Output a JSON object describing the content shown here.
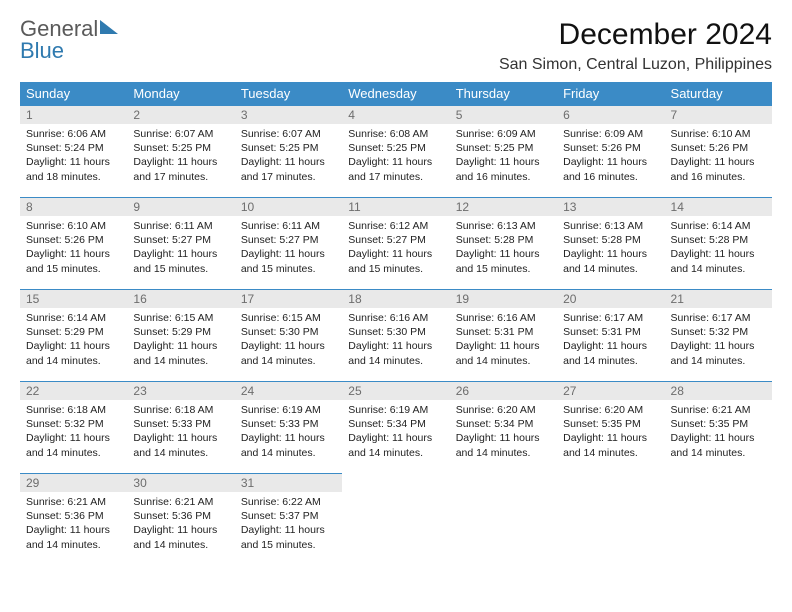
{
  "brand": {
    "word1": "General",
    "word2": "Blue"
  },
  "title": "December 2024",
  "location": "San Simon, Central Luzon, Philippines",
  "columns": [
    "Sunday",
    "Monday",
    "Tuesday",
    "Wednesday",
    "Thursday",
    "Friday",
    "Saturday"
  ],
  "colors": {
    "header_bg": "#3b8bc6",
    "header_text": "#ffffff",
    "daynum_bg": "#e9e9e9",
    "daynum_text": "#6d6d6d",
    "row_border": "#3b8bc6",
    "logo_gray": "#5a5a5a",
    "logo_blue": "#2f7aaf",
    "page_bg": "#ffffff"
  },
  "fonts": {
    "month_title_pt": 30,
    "location_pt": 16,
    "header_cell_pt": 13,
    "daynum_pt": 12,
    "body_pt": 10.5
  },
  "weeks": [
    [
      {
        "num": "1",
        "sunrise": "Sunrise: 6:06 AM",
        "sunset": "Sunset: 5:24 PM",
        "daylight": "Daylight: 11 hours and 18 minutes."
      },
      {
        "num": "2",
        "sunrise": "Sunrise: 6:07 AM",
        "sunset": "Sunset: 5:25 PM",
        "daylight": "Daylight: 11 hours and 17 minutes."
      },
      {
        "num": "3",
        "sunrise": "Sunrise: 6:07 AM",
        "sunset": "Sunset: 5:25 PM",
        "daylight": "Daylight: 11 hours and 17 minutes."
      },
      {
        "num": "4",
        "sunrise": "Sunrise: 6:08 AM",
        "sunset": "Sunset: 5:25 PM",
        "daylight": "Daylight: 11 hours and 17 minutes."
      },
      {
        "num": "5",
        "sunrise": "Sunrise: 6:09 AM",
        "sunset": "Sunset: 5:25 PM",
        "daylight": "Daylight: 11 hours and 16 minutes."
      },
      {
        "num": "6",
        "sunrise": "Sunrise: 6:09 AM",
        "sunset": "Sunset: 5:26 PM",
        "daylight": "Daylight: 11 hours and 16 minutes."
      },
      {
        "num": "7",
        "sunrise": "Sunrise: 6:10 AM",
        "sunset": "Sunset: 5:26 PM",
        "daylight": "Daylight: 11 hours and 16 minutes."
      }
    ],
    [
      {
        "num": "8",
        "sunrise": "Sunrise: 6:10 AM",
        "sunset": "Sunset: 5:26 PM",
        "daylight": "Daylight: 11 hours and 15 minutes."
      },
      {
        "num": "9",
        "sunrise": "Sunrise: 6:11 AM",
        "sunset": "Sunset: 5:27 PM",
        "daylight": "Daylight: 11 hours and 15 minutes."
      },
      {
        "num": "10",
        "sunrise": "Sunrise: 6:11 AM",
        "sunset": "Sunset: 5:27 PM",
        "daylight": "Daylight: 11 hours and 15 minutes."
      },
      {
        "num": "11",
        "sunrise": "Sunrise: 6:12 AM",
        "sunset": "Sunset: 5:27 PM",
        "daylight": "Daylight: 11 hours and 15 minutes."
      },
      {
        "num": "12",
        "sunrise": "Sunrise: 6:13 AM",
        "sunset": "Sunset: 5:28 PM",
        "daylight": "Daylight: 11 hours and 15 minutes."
      },
      {
        "num": "13",
        "sunrise": "Sunrise: 6:13 AM",
        "sunset": "Sunset: 5:28 PM",
        "daylight": "Daylight: 11 hours and 14 minutes."
      },
      {
        "num": "14",
        "sunrise": "Sunrise: 6:14 AM",
        "sunset": "Sunset: 5:28 PM",
        "daylight": "Daylight: 11 hours and 14 minutes."
      }
    ],
    [
      {
        "num": "15",
        "sunrise": "Sunrise: 6:14 AM",
        "sunset": "Sunset: 5:29 PM",
        "daylight": "Daylight: 11 hours and 14 minutes."
      },
      {
        "num": "16",
        "sunrise": "Sunrise: 6:15 AM",
        "sunset": "Sunset: 5:29 PM",
        "daylight": "Daylight: 11 hours and 14 minutes."
      },
      {
        "num": "17",
        "sunrise": "Sunrise: 6:15 AM",
        "sunset": "Sunset: 5:30 PM",
        "daylight": "Daylight: 11 hours and 14 minutes."
      },
      {
        "num": "18",
        "sunrise": "Sunrise: 6:16 AM",
        "sunset": "Sunset: 5:30 PM",
        "daylight": "Daylight: 11 hours and 14 minutes."
      },
      {
        "num": "19",
        "sunrise": "Sunrise: 6:16 AM",
        "sunset": "Sunset: 5:31 PM",
        "daylight": "Daylight: 11 hours and 14 minutes."
      },
      {
        "num": "20",
        "sunrise": "Sunrise: 6:17 AM",
        "sunset": "Sunset: 5:31 PM",
        "daylight": "Daylight: 11 hours and 14 minutes."
      },
      {
        "num": "21",
        "sunrise": "Sunrise: 6:17 AM",
        "sunset": "Sunset: 5:32 PM",
        "daylight": "Daylight: 11 hours and 14 minutes."
      }
    ],
    [
      {
        "num": "22",
        "sunrise": "Sunrise: 6:18 AM",
        "sunset": "Sunset: 5:32 PM",
        "daylight": "Daylight: 11 hours and 14 minutes."
      },
      {
        "num": "23",
        "sunrise": "Sunrise: 6:18 AM",
        "sunset": "Sunset: 5:33 PM",
        "daylight": "Daylight: 11 hours and 14 minutes."
      },
      {
        "num": "24",
        "sunrise": "Sunrise: 6:19 AM",
        "sunset": "Sunset: 5:33 PM",
        "daylight": "Daylight: 11 hours and 14 minutes."
      },
      {
        "num": "25",
        "sunrise": "Sunrise: 6:19 AM",
        "sunset": "Sunset: 5:34 PM",
        "daylight": "Daylight: 11 hours and 14 minutes."
      },
      {
        "num": "26",
        "sunrise": "Sunrise: 6:20 AM",
        "sunset": "Sunset: 5:34 PM",
        "daylight": "Daylight: 11 hours and 14 minutes."
      },
      {
        "num": "27",
        "sunrise": "Sunrise: 6:20 AM",
        "sunset": "Sunset: 5:35 PM",
        "daylight": "Daylight: 11 hours and 14 minutes."
      },
      {
        "num": "28",
        "sunrise": "Sunrise: 6:21 AM",
        "sunset": "Sunset: 5:35 PM",
        "daylight": "Daylight: 11 hours and 14 minutes."
      }
    ],
    [
      {
        "num": "29",
        "sunrise": "Sunrise: 6:21 AM",
        "sunset": "Sunset: 5:36 PM",
        "daylight": "Daylight: 11 hours and 14 minutes."
      },
      {
        "num": "30",
        "sunrise": "Sunrise: 6:21 AM",
        "sunset": "Sunset: 5:36 PM",
        "daylight": "Daylight: 11 hours and 14 minutes."
      },
      {
        "num": "31",
        "sunrise": "Sunrise: 6:22 AM",
        "sunset": "Sunset: 5:37 PM",
        "daylight": "Daylight: 11 hours and 15 minutes."
      },
      null,
      null,
      null,
      null
    ]
  ]
}
